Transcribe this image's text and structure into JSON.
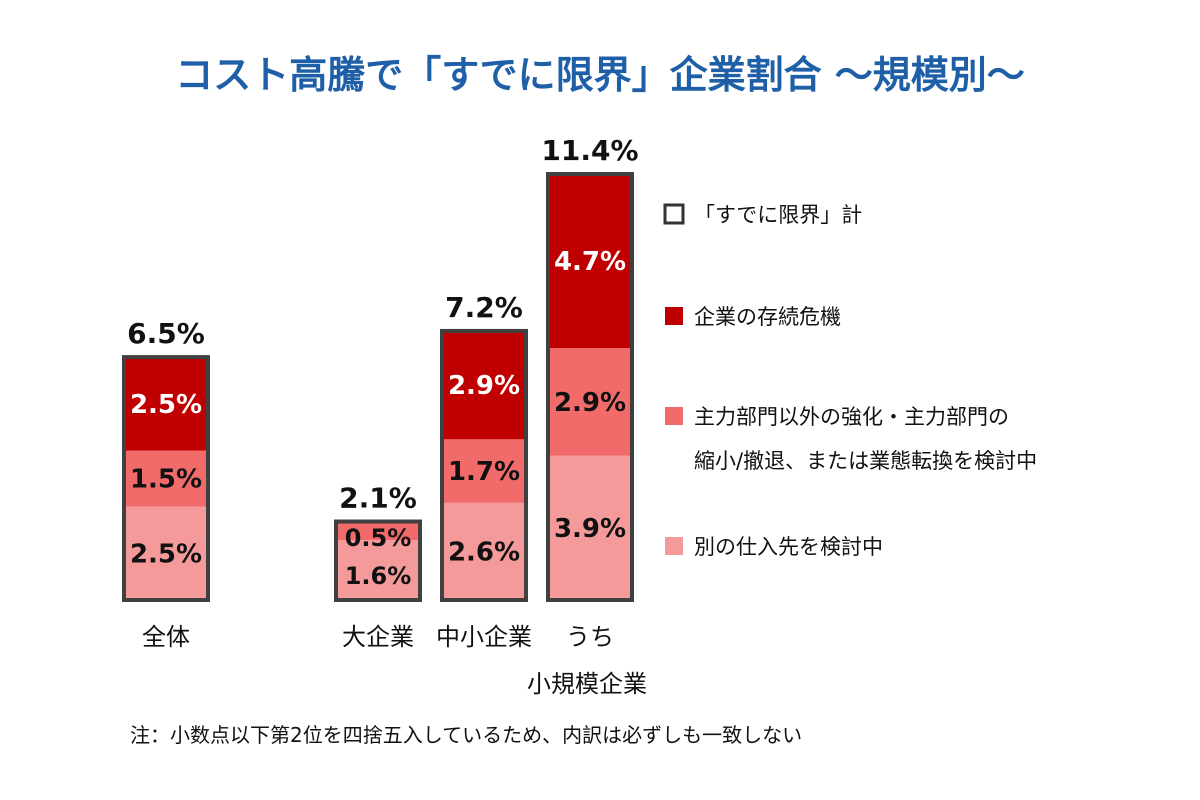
{
  "chart_data": {
    "type": "bar",
    "stacked": true,
    "title": "コスト高騰で「すでに限界」企業割合 ～規模別～",
    "categories": [
      "全体",
      "大企業",
      "中小企業",
      "うち"
    ],
    "group_label": "小規模企業",
    "series": [
      {
        "name": "別の仕入先を検討中",
        "values": [
          2.5,
          1.6,
          2.6,
          3.9
        ],
        "labels": [
          "2.5%",
          "1.6%",
          "2.6%",
          "3.9%"
        ]
      },
      {
        "name": "主力部門以外の強化・主力部門の縮小/撤退、または業態転換を検討中",
        "values": [
          1.5,
          0.5,
          1.7,
          2.9
        ],
        "labels": [
          "1.5%",
          "0.5%",
          "1.7%",
          "2.9%"
        ]
      },
      {
        "name": "企業の存続危機",
        "values": [
          2.5,
          0,
          2.9,
          4.7
        ],
        "labels": [
          "2.5%",
          "",
          "2.9%",
          "4.7%"
        ]
      }
    ],
    "totals": [
      6.5,
      2.1,
      7.2,
      11.4
    ],
    "total_labels": [
      "6.5%",
      "2.1%",
      "7.2%",
      "11.4%"
    ],
    "ylim": [
      0,
      11.4
    ],
    "legend": {
      "position": "right",
      "items": [
        {
          "label": "「すでに限界」計",
          "lines": [
            "「すでに限界」計"
          ]
        },
        {
          "label": "企業の存続危機",
          "lines": [
            "企業の存続危機"
          ]
        },
        {
          "label": "主力部門以外の強化・主力部門の縮小/撤退、または業態転換を検討中",
          "lines": [
            "主力部門以外の強化・主力部門の",
            "縮小/撤退、または業態転換を検討中"
          ]
        },
        {
          "label": "別の仕入先を検討中",
          "lines": [
            "別の仕入先を検討中"
          ]
        }
      ]
    },
    "note": "注：小数点以下第2位を四捨五入しているため、内訳は必ずしも一致しない",
    "colors": {
      "title": "#1f5fa8",
      "outline": "#404040",
      "crisis": "#c00000",
      "restructure": "#f26b6b",
      "supplier": "#f59a9a"
    }
  }
}
